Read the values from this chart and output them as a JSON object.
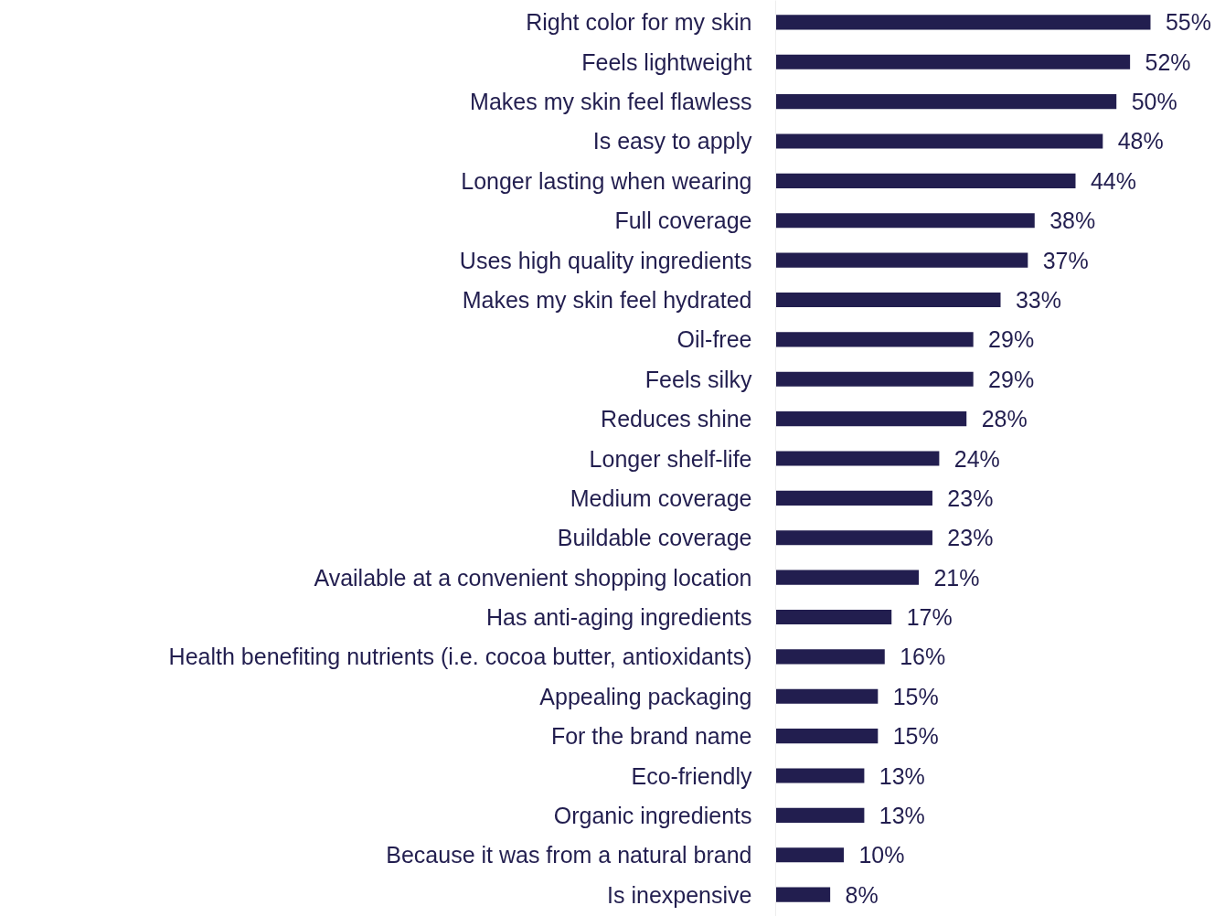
{
  "chart_data": {
    "type": "bar",
    "orientation": "horizontal",
    "categories": [
      "Right color for my skin",
      "Feels lightweight",
      "Makes my skin feel flawless",
      "Is easy to apply",
      "Longer lasting when wearing",
      "Full coverage",
      "Uses high quality ingredients",
      "Makes my skin feel hydrated",
      "Oil-free",
      "Feels silky",
      "Reduces shine",
      "Longer shelf-life",
      "Medium coverage",
      "Buildable coverage",
      "Available at a convenient shopping location",
      "Has anti-aging ingredients",
      "Health benefiting nutrients (i.e. cocoa butter, antioxidants)",
      "Appealing packaging",
      "For the brand name",
      "Eco-friendly",
      "Organic ingredients",
      "Because it was from a natural brand",
      "Is inexpensive"
    ],
    "values": [
      55,
      52,
      50,
      48,
      44,
      38,
      37,
      33,
      29,
      29,
      28,
      24,
      23,
      23,
      21,
      17,
      16,
      15,
      15,
      13,
      13,
      10,
      8
    ],
    "value_labels": [
      "55%",
      "52%",
      "50%",
      "48%",
      "44%",
      "38%",
      "37%",
      "33%",
      "29%",
      "29%",
      "28%",
      "24%",
      "23%",
      "23%",
      "21%",
      "17%",
      "16%",
      "15%",
      "15%",
      "13%",
      "13%",
      "10%",
      "8%"
    ],
    "color": "#221e4f"
  }
}
